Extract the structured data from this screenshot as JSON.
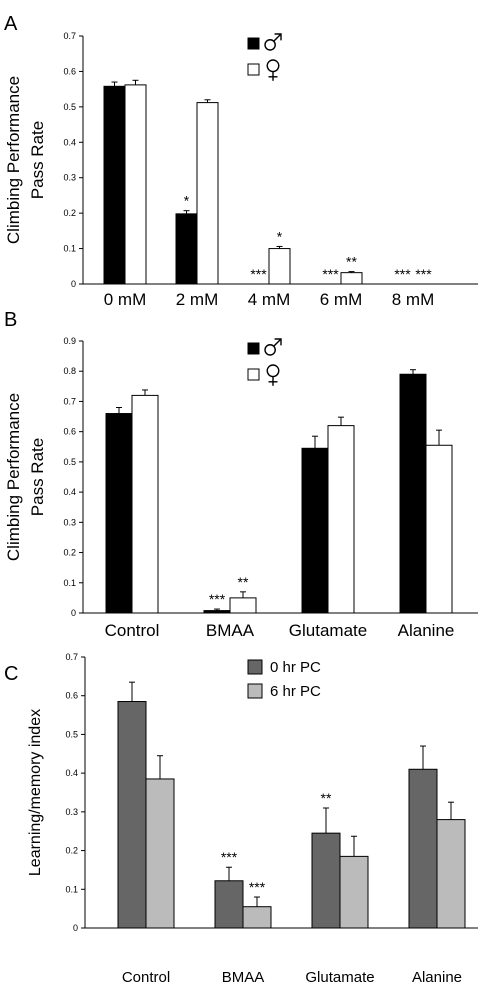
{
  "chart_data": [
    {
      "panel_letter": "A",
      "type": "bar",
      "ylabel_lines": [
        "Climbing Performance",
        "Pass Rate"
      ],
      "ylim": [
        0,
        0.7
      ],
      "yticks": [
        "0",
        "0.1",
        "0.2",
        "0.3",
        "0.4",
        "0.5",
        "0.6",
        "0.7"
      ],
      "categories": [
        "0 mM",
        "2 mM",
        "4 mM",
        "6 mM",
        "8 mM"
      ],
      "legend_placement": "top-right",
      "series": [
        {
          "name": "♂",
          "color": "#000000",
          "values": [
            0.558,
            0.198,
            0.0,
            0.0,
            0.0
          ],
          "errors": [
            0.012,
            0.009,
            0.0,
            0.0,
            0.0
          ],
          "annotations": [
            "",
            "*",
            "***",
            "***",
            "***"
          ]
        },
        {
          "name": "♀",
          "color": "#ffffff",
          "values": [
            0.562,
            0.512,
            0.1,
            0.032,
            0.0
          ],
          "errors": [
            0.013,
            0.008,
            0.006,
            0.003,
            0.0
          ],
          "annotations": [
            "",
            "",
            "*",
            "**",
            "***"
          ]
        }
      ]
    },
    {
      "panel_letter": "B",
      "type": "bar",
      "ylabel_lines": [
        "Climbing Performance",
        "Pass Rate"
      ],
      "ylim": [
        0,
        0.9
      ],
      "yticks": [
        "0",
        "0.1",
        "0.2",
        "0.3",
        "0.4",
        "0.5",
        "0.6",
        "0.7",
        "0.8",
        "0.9"
      ],
      "categories": [
        "Control",
        "BMAA",
        "Glutamate",
        "Alanine"
      ],
      "legend_placement": "top-center",
      "series": [
        {
          "name": "♂",
          "color": "#000000",
          "values": [
            0.66,
            0.008,
            0.545,
            0.79
          ],
          "errors": [
            0.02,
            0.005,
            0.04,
            0.015
          ],
          "annotations": [
            "",
            "***",
            "",
            ""
          ]
        },
        {
          "name": "♀",
          "color": "#ffffff",
          "values": [
            0.72,
            0.05,
            0.62,
            0.555
          ],
          "errors": [
            0.018,
            0.02,
            0.028,
            0.05
          ],
          "annotations": [
            "",
            "**",
            "",
            ""
          ]
        }
      ]
    },
    {
      "panel_letter": "C",
      "type": "bar",
      "ylabel_lines": [
        "Learning/memory index"
      ],
      "ylim": [
        0,
        0.7
      ],
      "yticks": [
        "0",
        "0.1",
        "0.2",
        "0.3",
        "0.4",
        "0.5",
        "0.6",
        "0.7"
      ],
      "categories": [
        "Control",
        "BMAA",
        "Glutamate",
        "Alanine"
      ],
      "legend_placement": "top-center",
      "series": [
        {
          "name": "0 hr PC",
          "color": "#666666",
          "values": [
            0.585,
            0.122,
            0.245,
            0.41
          ],
          "errors": [
            0.05,
            0.035,
            0.065,
            0.06
          ],
          "annotations": [
            "",
            "***",
            "**",
            ""
          ]
        },
        {
          "name": "6 hr PC",
          "color": "#bbbbbb",
          "values": [
            0.385,
            0.055,
            0.185,
            0.28
          ],
          "errors": [
            0.06,
            0.025,
            0.052,
            0.045
          ],
          "annotations": [
            "",
            "***",
            "",
            ""
          ]
        }
      ]
    }
  ]
}
